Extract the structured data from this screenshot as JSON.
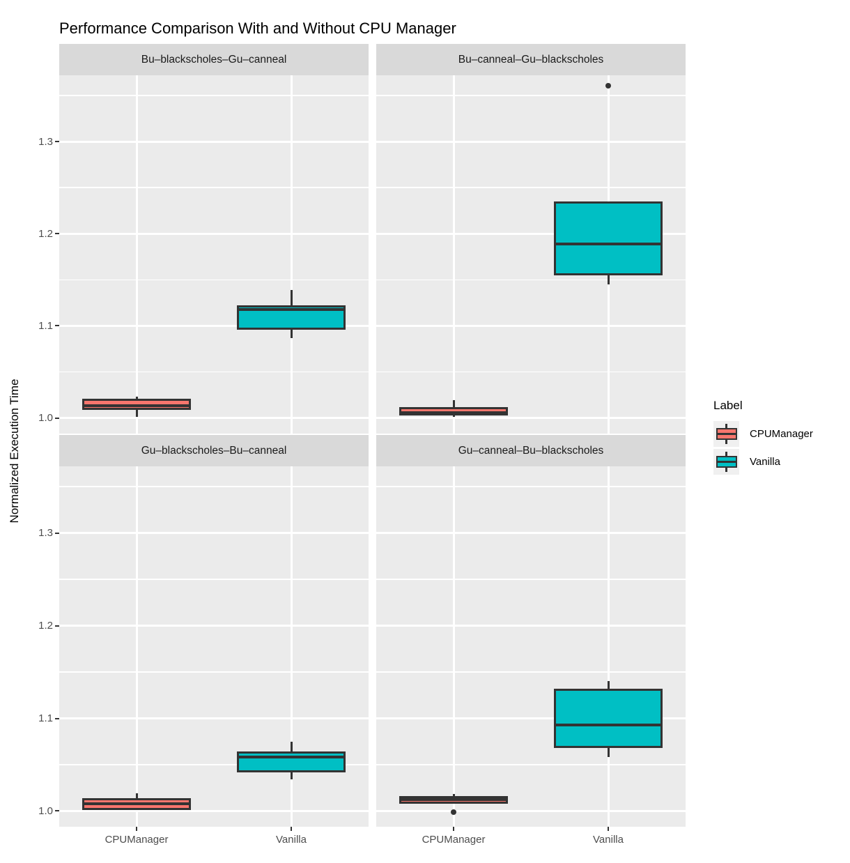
{
  "title": "Performance Comparison With and Without CPU Manager",
  "y_axis": {
    "label": "Normalized Execution Time",
    "tick_labels": [
      "1.0",
      "1.1",
      "1.2",
      "1.3"
    ]
  },
  "x_axis": {
    "categories": [
      "CPUManager",
      "Vanilla"
    ]
  },
  "colors": {
    "cpumanager_fill": "#F8766D",
    "vanilla_fill": "#00BFC4",
    "box_border": "#333333",
    "outlier": "#333333",
    "panel_bg": "#EBEBEB",
    "strip_bg": "#D9D9D9",
    "gridline": "#FFFFFF",
    "axis_text": "#4D4D4D",
    "legend_key_bg": "#F0F0F0"
  },
  "chart_data": {
    "type": "boxplot",
    "title": "Performance Comparison With and Without CPU Manager",
    "xlabel": "",
    "ylabel": "Normalized Execution Time",
    "categories": [
      "CPUManager",
      "Vanilla"
    ],
    "y_major_ticks": [
      1.0,
      1.1,
      1.2,
      1.3
    ],
    "y_minor_ticks": [
      1.05,
      1.15,
      1.25,
      1.35
    ],
    "y_tick_labels": [
      "1.0",
      "1.1",
      "1.2",
      "1.3"
    ],
    "ylim_shown": [
      0.983,
      1.372
    ],
    "grid": "major-and-minor, white on gray panel",
    "legend_position": "right",
    "legend": {
      "title": "Label",
      "entries": [
        {
          "label": "CPUManager",
          "color": "#F8766D"
        },
        {
          "label": "Vanilla",
          "color": "#00BFC4"
        }
      ]
    },
    "facets": [
      {
        "label": "Bu–blackscholes–Gu–canneal",
        "boxes": [
          {
            "series": "CPUManager",
            "whisker_low": 1.001,
            "q1": 1.009,
            "median": 1.013,
            "q3": 1.021,
            "whisker_high": 1.023,
            "outliers": []
          },
          {
            "series": "Vanilla",
            "whisker_low": 1.087,
            "q1": 1.096,
            "median": 1.118,
            "q3": 1.122,
            "whisker_high": 1.139,
            "outliers": []
          }
        ]
      },
      {
        "label": "Bu–canneal–Gu–blackscholes",
        "boxes": [
          {
            "series": "CPUManager",
            "whisker_low": 1.001,
            "q1": 1.003,
            "median": 1.006,
            "q3": 1.012,
            "whisker_high": 1.019,
            "outliers": []
          },
          {
            "series": "Vanilla",
            "whisker_low": 1.145,
            "q1": 1.155,
            "median": 1.189,
            "q3": 1.235,
            "whisker_high": 1.235,
            "outliers": [
              1.361
            ]
          }
        ]
      },
      {
        "label": "Gu–blackscholes–Bu–canneal",
        "boxes": [
          {
            "series": "CPUManager",
            "whisker_low": 1.001,
            "q1": 1.001,
            "median": 1.008,
            "q3": 1.014,
            "whisker_high": 1.019,
            "outliers": []
          },
          {
            "series": "Vanilla",
            "whisker_low": 1.034,
            "q1": 1.042,
            "median": 1.058,
            "q3": 1.064,
            "whisker_high": 1.075,
            "outliers": []
          }
        ]
      },
      {
        "label": "Gu–canneal–Bu–blackscholes",
        "boxes": [
          {
            "series": "CPUManager",
            "whisker_low": 1.008,
            "q1": 1.008,
            "median": 1.012,
            "q3": 1.016,
            "whisker_high": 1.018,
            "outliers": [
              0.999
            ]
          },
          {
            "series": "Vanilla",
            "whisker_low": 1.058,
            "q1": 1.068,
            "median": 1.093,
            "q3": 1.132,
            "whisker_high": 1.14,
            "outliers": []
          }
        ]
      }
    ],
    "series_colors": {
      "CPUManager": "#F8766D",
      "Vanilla": "#00BFC4"
    }
  }
}
